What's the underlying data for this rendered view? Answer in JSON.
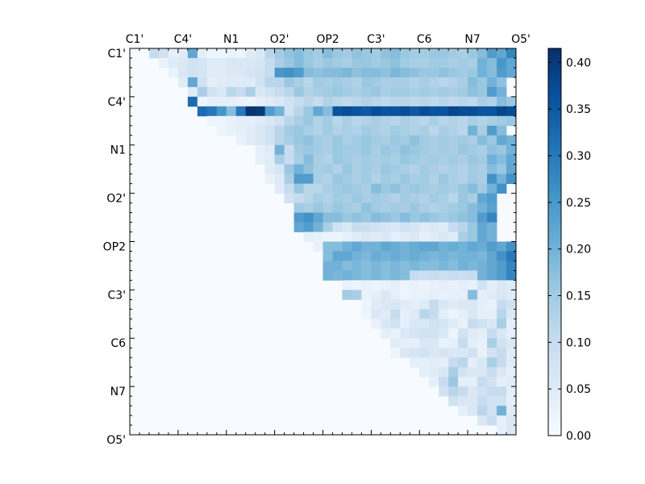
{
  "chart_data": {
    "type": "heatmap",
    "title": "",
    "xlabel": "",
    "ylabel": "",
    "n": 40,
    "x_tick_labels": [
      "C1'",
      "C4'",
      "N1",
      "O2'",
      "OP2",
      "C3'",
      "C6",
      "N7",
      "O5'"
    ],
    "y_tick_labels": [
      "C1'",
      "C4'",
      "N1",
      "O2'",
      "OP2",
      "C3'",
      "C6",
      "N7",
      "O5'"
    ],
    "tick_positions": [
      0,
      5,
      10,
      15,
      20,
      25,
      30,
      35,
      40
    ],
    "colorbar": {
      "min": 0.0,
      "max": 0.415,
      "colormap": "Blues",
      "tick_labels": [
        "0.00",
        "0.05",
        "0.10",
        "0.15",
        "0.20",
        "0.25",
        "0.30",
        "0.35",
        "0.40"
      ],
      "ticks": [
        0.0,
        0.05,
        0.1,
        0.15,
        0.2,
        0.25,
        0.3,
        0.35,
        0.4
      ]
    },
    "matrix_shape": "upper-triangular",
    "rows": [
      {
        "row": 0,
        "start": 2,
        "values": [
          0.1,
          0.08,
          0.04,
          0.05,
          0.22,
          0.04,
          0.02,
          0.02,
          0.03,
          0.02,
          0.05,
          0.06,
          0.12,
          0.15,
          0.17,
          0.18,
          0.16,
          0.15,
          0.18,
          0.16,
          0.15,
          0.17,
          0.16,
          0.15,
          0.17,
          0.18,
          0.16,
          0.15,
          0.15,
          0.16,
          0.16,
          0.15,
          0.14,
          0.16,
          0.18,
          0.24,
          0.22,
          0.28
        ]
      },
      {
        "row": 1,
        "start": 3,
        "values": [
          0.03,
          0.05,
          0.06,
          0.08,
          0.07,
          0.05,
          0.05,
          0.06,
          0.06,
          0.06,
          0.07,
          0.1,
          0.14,
          0.16,
          0.18,
          0.16,
          0.14,
          0.16,
          0.15,
          0.14,
          0.16,
          0.16,
          0.15,
          0.16,
          0.17,
          0.15,
          0.14,
          0.14,
          0.15,
          0.15,
          0.14,
          0.15,
          0.14,
          0.2,
          0.18,
          0.25,
          0.22
        ]
      },
      {
        "row": 2,
        "start": 4,
        "values": [
          0.03,
          0.06,
          0.08,
          0.07,
          0.05,
          0.05,
          0.06,
          0.06,
          0.07,
          0.08,
          0.1,
          0.25,
          0.26,
          0.24,
          0.18,
          0.17,
          0.18,
          0.18,
          0.19,
          0.17,
          0.18,
          0.18,
          0.17,
          0.19,
          0.18,
          0.17,
          0.16,
          0.16,
          0.17,
          0.16,
          0.15,
          0.16,
          0.2,
          0.18,
          0.24,
          0.22
        ]
      },
      {
        "row": 3,
        "start": 5,
        "values": [
          0.05,
          0.22,
          0.08,
          0.04,
          0.05,
          0.05,
          0.05,
          0.05,
          0.08,
          0.12,
          0.12,
          0.16,
          0.14,
          0.12,
          0.15,
          0.14,
          0.15,
          0.14,
          0.13,
          0.16,
          0.15,
          0.14,
          0.14,
          0.14,
          0.13,
          0.14,
          0.13,
          0.12,
          0.13,
          0.14,
          0.18,
          0.16,
          0.2,
          0.17
        ]
      },
      {
        "row": 4,
        "start": 6,
        "values": [
          0.05,
          0.14,
          0.08,
          0.06,
          0.12,
          0.1,
          0.14,
          0.06,
          0.08,
          0.1,
          0.12,
          0.16,
          0.13,
          0.14,
          0.15,
          0.16,
          0.15,
          0.14,
          0.15,
          0.16,
          0.14,
          0.15,
          0.15,
          0.14,
          0.15,
          0.14,
          0.15,
          0.14,
          0.15,
          0.17,
          0.16,
          0.24,
          0.2
        ]
      },
      {
        "row": 5,
        "start": 6,
        "values": [
          0.32,
          0.02,
          0.04,
          0.04,
          0.04,
          0.03,
          0.02,
          0.04,
          0.05,
          0.06,
          0.08,
          0.1,
          0.12,
          0.1,
          0.13,
          0.12,
          0.11,
          0.12,
          0.13,
          0.12,
          0.11,
          0.12,
          0.12,
          0.11,
          0.12,
          0.11,
          0.12,
          0.11,
          0.12,
          0.11,
          0.14,
          0.13,
          0.18,
          0.16
        ]
      },
      {
        "row": 6,
        "start": 7,
        "values": [
          0.32,
          0.3,
          0.25,
          0.18,
          0.3,
          0.41,
          0.4,
          0.24,
          0.2,
          0.08,
          0.12,
          0.16,
          0.22,
          0.18,
          0.36,
          0.37,
          0.36,
          0.35,
          0.37,
          0.36,
          0.36,
          0.37,
          0.35,
          0.37,
          0.36,
          0.36,
          0.38,
          0.37,
          0.37,
          0.36,
          0.36,
          0.38,
          0.37,
          0.36
        ]
      },
      {
        "row": 7,
        "start": 8,
        "values": [
          0.02,
          0.02,
          0.03,
          0.04,
          0.04,
          0.05,
          0.06,
          0.08,
          0.12,
          0.14,
          0.16,
          0.13,
          0.15,
          0.12,
          0.14,
          0.12,
          0.13,
          0.14,
          0.13,
          0.12,
          0.14,
          0.13,
          0.12,
          0.14,
          0.12,
          0.13,
          0.12,
          0.14,
          0.13,
          0.14,
          0.15,
          0.16
        ]
      },
      {
        "row": 8,
        "start": 9,
        "values": [
          0.02,
          0.03,
          0.04,
          0.05,
          0.06,
          0.08,
          0.12,
          0.15,
          0.16,
          0.14,
          0.13,
          0.15,
          0.13,
          0.14,
          0.13,
          0.15,
          0.14,
          0.13,
          0.15,
          0.14,
          0.13,
          0.14,
          0.12,
          0.14,
          0.13,
          0.12,
          0.2,
          0.14,
          0.24,
          0.18
        ]
      },
      {
        "row": 9,
        "start": 11,
        "values": [
          0.03,
          0.05,
          0.06,
          0.08,
          0.12,
          0.14,
          0.16,
          0.17,
          0.15,
          0.14,
          0.16,
          0.14,
          0.15,
          0.16,
          0.15,
          0.14,
          0.16,
          0.15,
          0.17,
          0.15,
          0.14,
          0.15,
          0.14,
          0.15,
          0.14,
          0.18,
          0.16,
          0.22,
          0.2
        ]
      },
      {
        "row": 10,
        "start": 13,
        "values": [
          0.04,
          0.05,
          0.2,
          0.1,
          0.15,
          0.16,
          0.15,
          0.14,
          0.16,
          0.15,
          0.15,
          0.16,
          0.14,
          0.16,
          0.15,
          0.17,
          0.16,
          0.15,
          0.14,
          0.15,
          0.14,
          0.16,
          0.15,
          0.14,
          0.17,
          0.16,
          0.2
        ]
      },
      {
        "row": 11,
        "start": 13,
        "values": [
          0.04,
          0.05,
          0.14,
          0.1,
          0.14,
          0.18,
          0.14,
          0.13,
          0.16,
          0.15,
          0.14,
          0.15,
          0.14,
          0.15,
          0.14,
          0.16,
          0.15,
          0.14,
          0.15,
          0.14,
          0.15,
          0.14,
          0.16,
          0.15,
          0.2,
          0.18,
          0.22
        ]
      },
      {
        "row": 12,
        "start": 14,
        "values": [
          0.05,
          0.07,
          0.16,
          0.2,
          0.17,
          0.14,
          0.15,
          0.13,
          0.16,
          0.14,
          0.15,
          0.14,
          0.16,
          0.15,
          0.14,
          0.13,
          0.15,
          0.14,
          0.13,
          0.14,
          0.13,
          0.15,
          0.14,
          0.18,
          0.16,
          0.22
        ]
      },
      {
        "row": 13,
        "start": 14,
        "values": [
          0.03,
          0.05,
          0.14,
          0.24,
          0.24,
          0.14,
          0.13,
          0.16,
          0.15,
          0.14,
          0.15,
          0.13,
          0.15,
          0.14,
          0.16,
          0.14,
          0.15,
          0.13,
          0.16,
          0.14,
          0.13,
          0.15,
          0.14,
          0.26,
          0.2,
          0.26
        ]
      },
      {
        "row": 14,
        "start": 15,
        "values": [
          0.05,
          0.1,
          0.16,
          0.12,
          0.12,
          0.14,
          0.15,
          0.16,
          0.15,
          0.14,
          0.18,
          0.16,
          0.17,
          0.15,
          0.16,
          0.15,
          0.14,
          0.15,
          0.14,
          0.16,
          0.18,
          0.15,
          0.2,
          0.26
        ]
      },
      {
        "row": 15,
        "start": 16,
        "values": [
          0.08,
          0.1,
          0.12,
          0.14,
          0.13,
          0.15,
          0.14,
          0.16,
          0.14,
          0.15,
          0.14,
          0.13,
          0.15,
          0.14,
          0.13,
          0.15,
          0.14,
          0.12,
          0.16,
          0.14,
          0.22,
          0.24
        ]
      },
      {
        "row": 16,
        "start": 17,
        "values": [
          0.15,
          0.14,
          0.16,
          0.14,
          0.16,
          0.15,
          0.14,
          0.17,
          0.15,
          0.14,
          0.15,
          0.14,
          0.16,
          0.14,
          0.13,
          0.14,
          0.15,
          0.16,
          0.18,
          0.2,
          0.23
        ]
      },
      {
        "row": 17,
        "start": 17,
        "values": [
          0.24,
          0.26,
          0.22,
          0.18,
          0.18,
          0.16,
          0.17,
          0.16,
          0.18,
          0.17,
          0.16,
          0.18,
          0.16,
          0.17,
          0.16,
          0.15,
          0.16,
          0.17,
          0.18,
          0.24,
          0.28
        ]
      },
      {
        "row": 18,
        "start": 17,
        "values": [
          0.22,
          0.24,
          0.2,
          0.14,
          0.08,
          0.06,
          0.1,
          0.09,
          0.08,
          0.07,
          0.06,
          0.08,
          0.07,
          0.05,
          0.06,
          0.05,
          0.1,
          0.12,
          0.16,
          0.22,
          0.2
        ]
      },
      {
        "row": 19,
        "start": 18,
        "values": [
          0.04,
          0.03,
          0.02,
          0.02,
          0.04,
          0.05,
          0.06,
          0.05,
          0.06,
          0.04,
          0.05,
          0.06,
          0.04,
          0.05,
          0.06,
          0.05,
          0.14,
          0.16,
          0.22,
          0.2
        ]
      },
      {
        "row": 20,
        "start": 19,
        "values": [
          0.03,
          0.18,
          0.18,
          0.2,
          0.22,
          0.2,
          0.2,
          0.22,
          0.21,
          0.2,
          0.21,
          0.22,
          0.22,
          0.2,
          0.21,
          0.2,
          0.22,
          0.21,
          0.24,
          0.22,
          0.26
        ]
      },
      {
        "row": 21,
        "start": 20,
        "values": [
          0.18,
          0.22,
          0.22,
          0.2,
          0.19,
          0.21,
          0.2,
          0.21,
          0.2,
          0.21,
          0.2,
          0.19,
          0.2,
          0.19,
          0.2,
          0.2,
          0.19,
          0.22,
          0.26,
          0.3
        ]
      },
      {
        "row": 22,
        "start": 20,
        "values": [
          0.2,
          0.2,
          0.18,
          0.19,
          0.18,
          0.19,
          0.18,
          0.19,
          0.18,
          0.19,
          0.18,
          0.18,
          0.19,
          0.18,
          0.2,
          0.19,
          0.2,
          0.22,
          0.24,
          0.28
        ]
      },
      {
        "row": 23,
        "start": 20,
        "values": [
          0.2,
          0.19,
          0.2,
          0.19,
          0.18,
          0.19,
          0.18,
          0.19,
          0.18,
          0.1,
          0.09,
          0.1,
          0.09,
          0.1,
          0.09,
          0.1,
          0.2,
          0.22,
          0.24,
          0.28
        ]
      },
      {
        "row": 24,
        "start": 22,
        "values": [
          0.03,
          0.02,
          0.03,
          0.02,
          0.03,
          0.04,
          0.02,
          0.03,
          0.02,
          0.03,
          0.04,
          0.03,
          0.04,
          0.03,
          0.08,
          0.04,
          0.06,
          0.05
        ]
      },
      {
        "row": 25,
        "start": 22,
        "values": [
          0.15,
          0.14,
          0.03,
          0.04,
          0.06,
          0.04,
          0.02,
          0.03,
          0.03,
          0.04,
          0.03,
          0.04,
          0.04,
          0.18,
          0.04,
          0.05,
          0.06,
          0.05
        ]
      },
      {
        "row": 26,
        "start": 24,
        "values": [
          0.02,
          0.05,
          0.06,
          0.06,
          0.05,
          0.04,
          0.05,
          0.1,
          0.06,
          0.05,
          0.06,
          0.06,
          0.04,
          0.03,
          0.1,
          0.08
        ]
      },
      {
        "row": 27,
        "start": 24,
        "values": [
          0.02,
          0.06,
          0.05,
          0.1,
          0.04,
          0.05,
          0.12,
          0.1,
          0.04,
          0.02,
          0.04,
          0.06,
          0.04,
          0.04,
          0.12,
          0.06
        ]
      },
      {
        "row": 28,
        "start": 25,
        "values": [
          0.03,
          0.06,
          0.08,
          0.04,
          0.06,
          0.06,
          0.08,
          0.07,
          0.05,
          0.03,
          0.1,
          0.08,
          0.06,
          0.14,
          0.04
        ]
      },
      {
        "row": 29,
        "start": 26,
        "values": [
          0.04,
          0.03,
          0.06,
          0.07,
          0.08,
          0.08,
          0.06,
          0.02,
          0.08,
          0.05,
          0.04,
          0.1,
          0.06,
          0.04
        ]
      },
      {
        "row": 30,
        "start": 27,
        "values": [
          0.05,
          0.04,
          0.04,
          0.06,
          0.06,
          0.03,
          0.04,
          0.1,
          0.04,
          0.03,
          0.14,
          0.08,
          0.06
        ]
      },
      {
        "row": 31,
        "start": 27,
        "values": [
          0.02,
          0.06,
          0.07,
          0.08,
          0.06,
          0.07,
          0.06,
          0.06,
          0.08,
          0.03,
          0.08,
          0.1,
          0.05
        ]
      },
      {
        "row": 32,
        "start": 29,
        "values": [
          0.04,
          0.04,
          0.05,
          0.04,
          0.1,
          0.12,
          0.04,
          0.06,
          0.14,
          0.1,
          0.05
        ]
      },
      {
        "row": 33,
        "start": 30,
        "values": [
          0.04,
          0.05,
          0.06,
          0.14,
          0.08,
          0.06,
          0.06,
          0.1,
          0.06,
          0.04
        ]
      },
      {
        "row": 34,
        "start": 31,
        "values": [
          0.04,
          0.1,
          0.16,
          0.04,
          0.04,
          0.1,
          0.08,
          0.04,
          0.05
        ]
      },
      {
        "row": 35,
        "start": 32,
        "values": [
          0.08,
          0.12,
          0.1,
          0.06,
          0.08,
          0.1,
          0.1,
          0.04
        ]
      },
      {
        "row": 36,
        "start": 33,
        "values": [
          0.08,
          0.06,
          0.06,
          0.1,
          0.08,
          0.08,
          0.04
        ]
      },
      {
        "row": 37,
        "start": 34,
        "values": [
          0.04,
          0.06,
          0.12,
          0.08,
          0.2,
          0.05
        ]
      },
      {
        "row": 38,
        "start": 36,
        "values": [
          0.06,
          0.1,
          0.04,
          0.06
        ]
      },
      {
        "row": 39,
        "start": 38,
        "values": [
          0.04,
          0.06
        ]
      }
    ]
  }
}
